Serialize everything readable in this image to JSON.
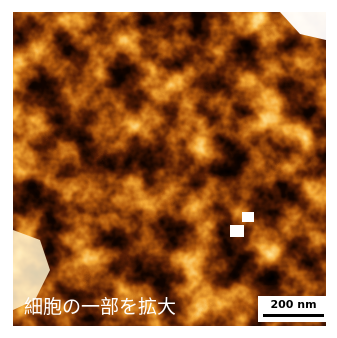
{
  "caption": "細胞の一部を拡大",
  "scale_bar": {
    "label": "200 nm"
  }
}
